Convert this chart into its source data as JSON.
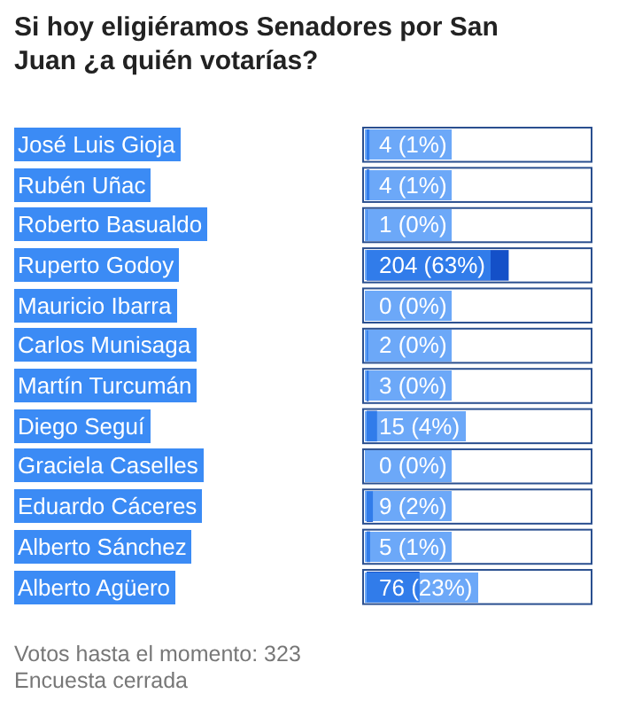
{
  "chart_data": {
    "type": "bar",
    "orientation": "horizontal",
    "title": "Si hoy eligiéramos Senadores por San Juan ¿a quién votarías?",
    "categories": [
      "José Luis Gioja",
      "Rubén Uñac",
      "Roberto Basualdo",
      "Ruperto Godoy",
      "Mauricio Ibarra",
      "Carlos Munisaga",
      "Martín Turcumán",
      "Diego Seguí",
      "Graciela Caselles",
      "Eduardo Cáceres",
      "Alberto Sánchez",
      "Alberto Agüero"
    ],
    "values": [
      4,
      4,
      1,
      204,
      0,
      2,
      3,
      15,
      0,
      9,
      5,
      76
    ],
    "value_labels": [
      "4 (1%)",
      "4 (1%)",
      "1 (0%)",
      "204 (63%)",
      "0 (0%)",
      "2 (0%)",
      "3 (0%)",
      "15 (4%)",
      "0 (0%)",
      "9 (2%)",
      "5 (1%)",
      "76 (23%)"
    ],
    "color": "#1450c8",
    "xlim": [
      0,
      323
    ],
    "tick_labels": false,
    "annotations": [
      "Votos hasta el momento: 323",
      "Encuesta cerrada"
    ]
  }
}
